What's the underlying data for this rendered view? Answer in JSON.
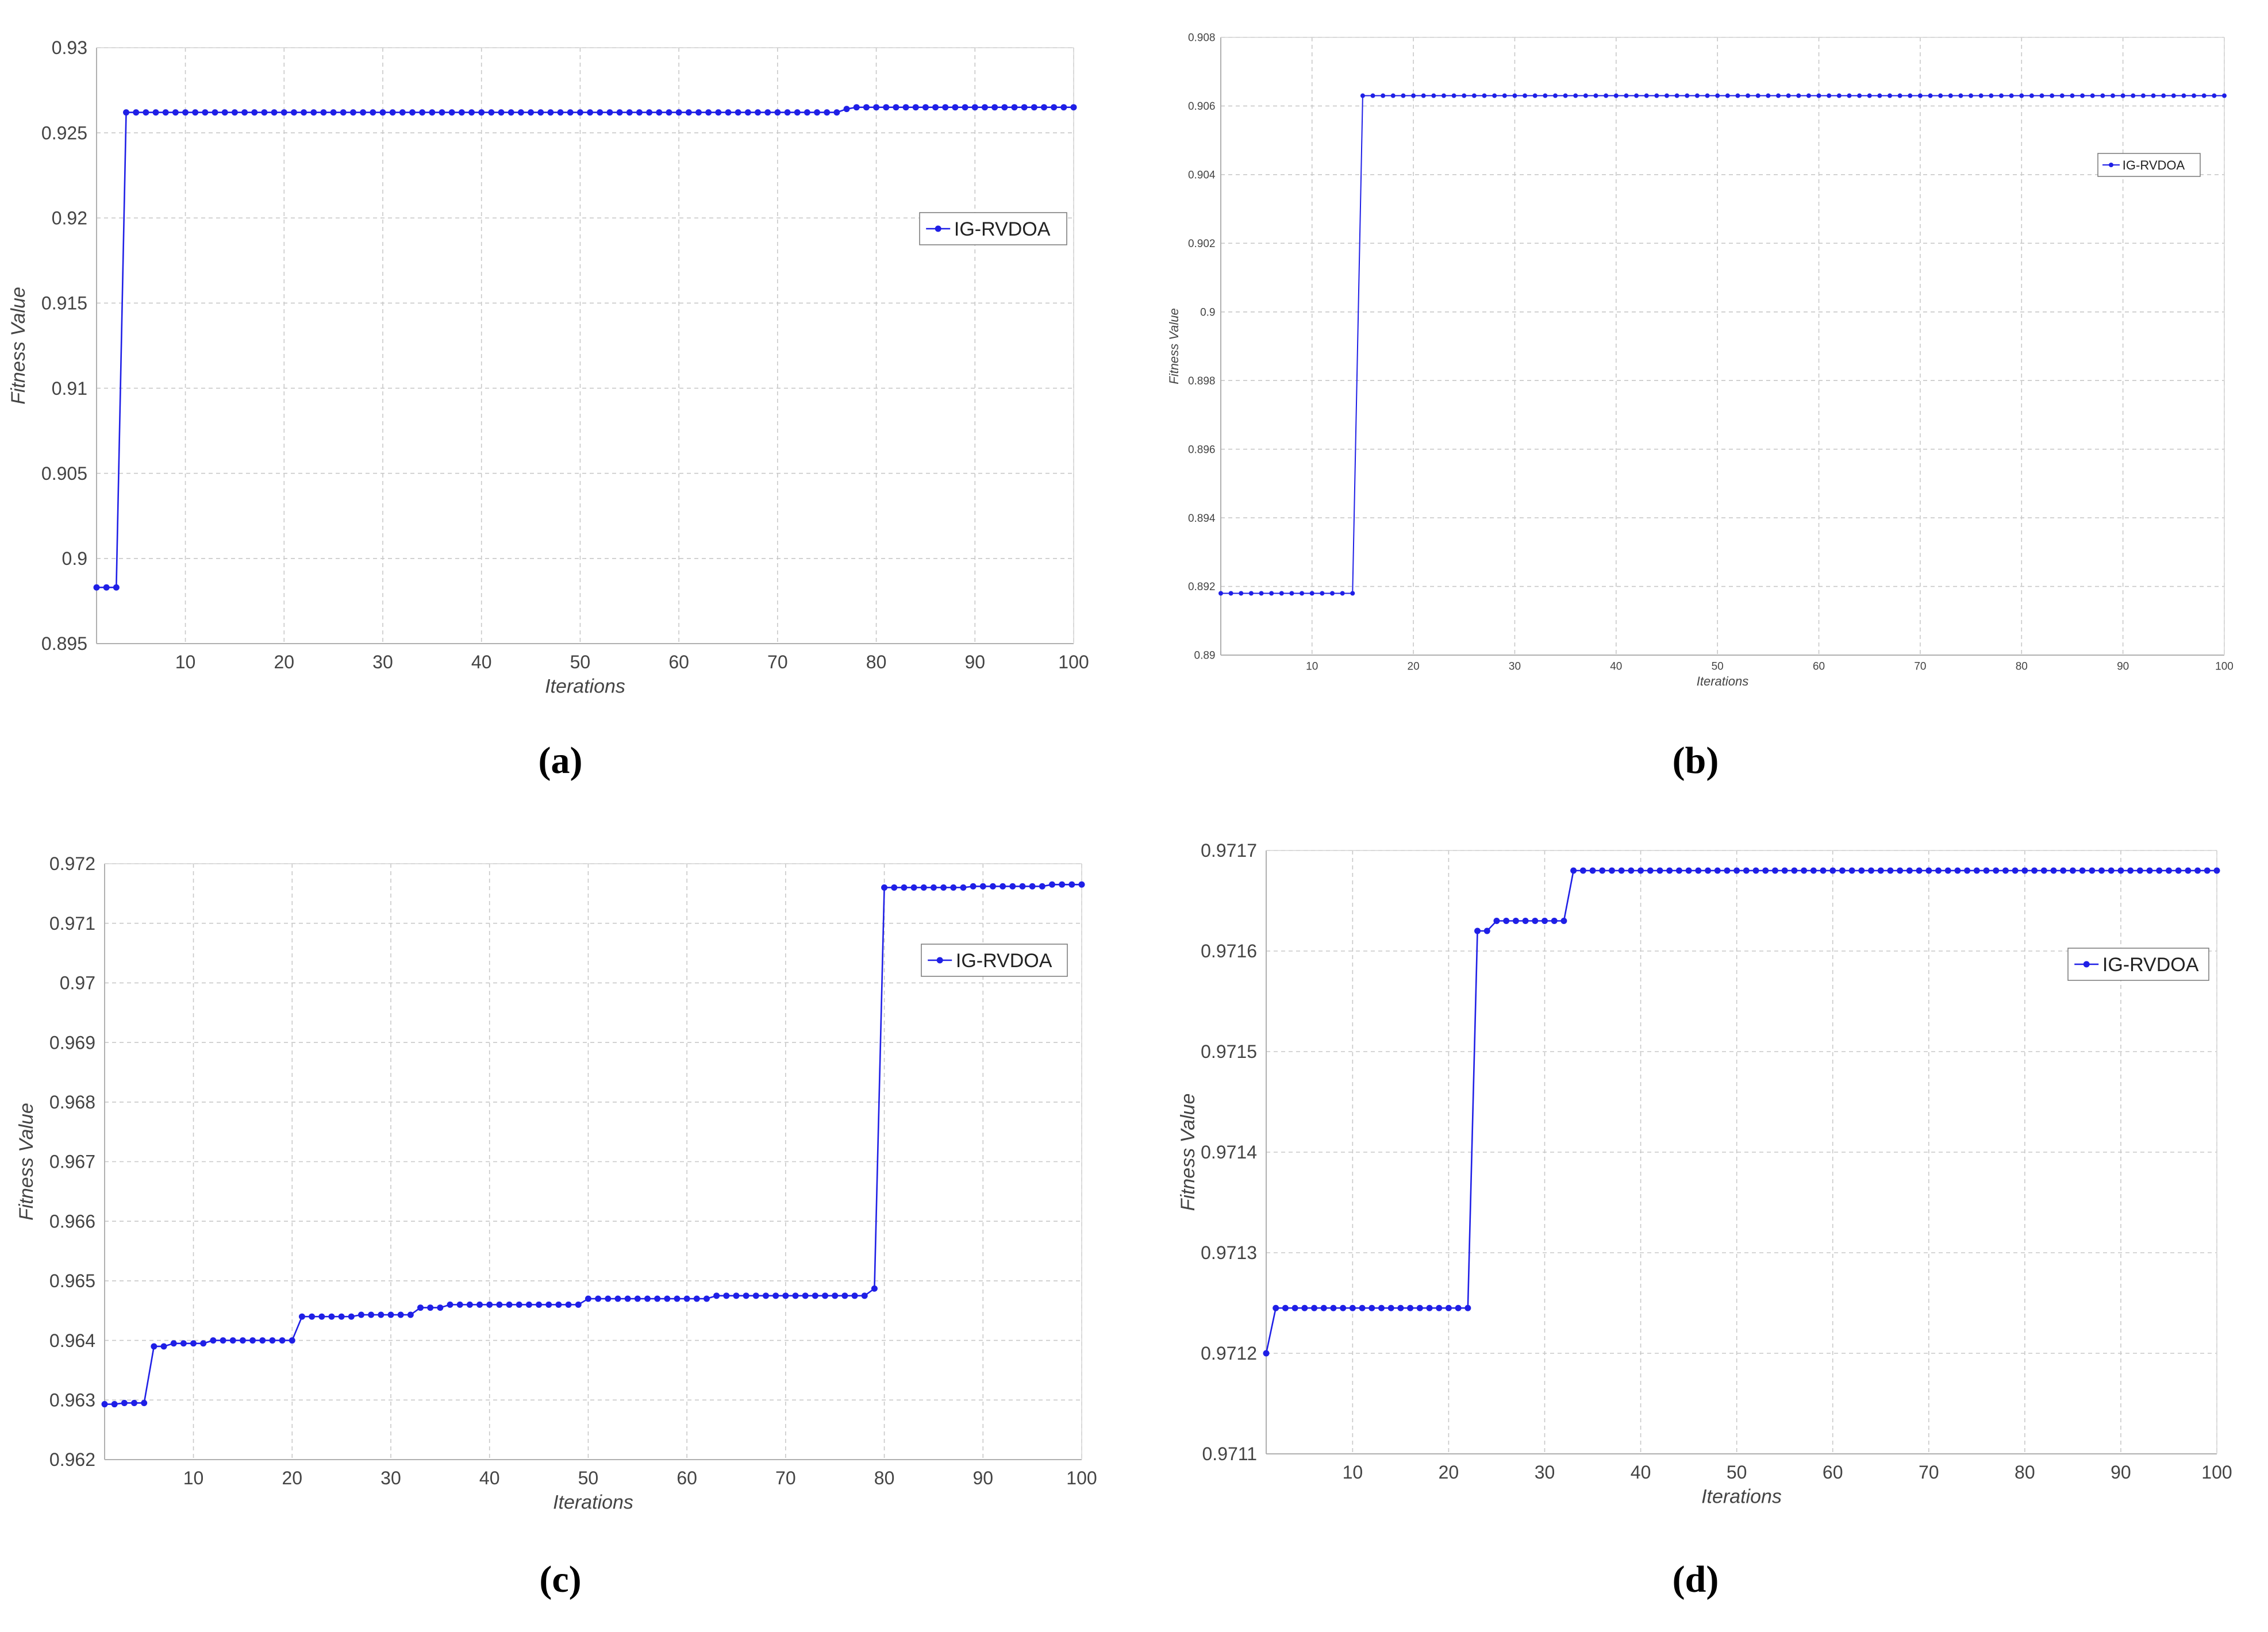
{
  "series_color": "#1f1fe6",
  "chart_data": [
    {
      "type": "line",
      "panel_label": "(a)",
      "xlabel": "Iterations",
      "ylabel": "Fitness Value",
      "xlim": [
        1,
        100
      ],
      "ylim": [
        0.895,
        0.93
      ],
      "xticks": [
        10,
        20,
        30,
        40,
        50,
        60,
        70,
        80,
        90,
        100
      ],
      "xtick_labels": [
        "10",
        "20",
        "30",
        "40",
        "50",
        "60",
        "70",
        "80",
        "90",
        "100"
      ],
      "yticks": [
        0.895,
        0.9,
        0.905,
        0.91,
        0.915,
        0.92,
        0.925,
        0.93
      ],
      "ytick_labels": [
        "0.895",
        "0.9",
        "0.905",
        "0.91",
        "0.915",
        "0.92",
        "0.925",
        "0.93"
      ],
      "grid": true,
      "legend_position": "right",
      "steps": [
        [
          1,
          0.8983
        ],
        [
          4,
          0.9262
        ],
        [
          77,
          0.9264
        ],
        [
          78,
          0.9265
        ]
      ],
      "series": [
        {
          "name": "IG-RVDOA",
          "x_range": [
            1,
            100
          ]
        }
      ]
    },
    {
      "type": "line",
      "panel_label": "(b)",
      "xlabel": "Iterations",
      "ylabel": "Fitness Value",
      "xlim": [
        1,
        100
      ],
      "ylim": [
        0.89,
        0.908
      ],
      "xticks": [
        10,
        20,
        30,
        40,
        50,
        60,
        70,
        80,
        90,
        100
      ],
      "xtick_labels": [
        "10",
        "20",
        "30",
        "40",
        "50",
        "60",
        "70",
        "80",
        "90",
        "100"
      ],
      "yticks": [
        0.89,
        0.892,
        0.894,
        0.896,
        0.898,
        0.9,
        0.902,
        0.904,
        0.906,
        0.908
      ],
      "ytick_labels": [
        "0.89",
        "0.892",
        "0.894",
        "0.896",
        "0.898",
        "0.9",
        "0.902",
        "0.904",
        "0.906",
        "0.908"
      ],
      "grid": true,
      "legend_position": "top-right",
      "steps": [
        [
          1,
          0.8918
        ],
        [
          15,
          0.9063
        ]
      ],
      "series": [
        {
          "name": "IG-RVDOA",
          "x_range": [
            1,
            100
          ]
        }
      ]
    },
    {
      "type": "line",
      "panel_label": "(c)",
      "xlabel": "Iterations",
      "ylabel": "Fitness Value",
      "xlim": [
        1,
        100
      ],
      "ylim": [
        0.962,
        0.972
      ],
      "xticks": [
        10,
        20,
        30,
        40,
        50,
        60,
        70,
        80,
        90,
        100
      ],
      "xtick_labels": [
        "10",
        "20",
        "30",
        "40",
        "50",
        "60",
        "70",
        "80",
        "90",
        "100"
      ],
      "yticks": [
        0.962,
        0.963,
        0.964,
        0.965,
        0.966,
        0.967,
        0.968,
        0.969,
        0.97,
        0.971,
        0.972
      ],
      "ytick_labels": [
        "0.962",
        "0.963",
        "0.964",
        "0.965",
        "0.966",
        "0.967",
        "0.968",
        "0.969",
        "0.97",
        "0.971",
        "0.972"
      ],
      "grid": true,
      "legend_position": "right",
      "steps": [
        [
          1,
          0.96293
        ],
        [
          3,
          0.96295
        ],
        [
          6,
          0.9639
        ],
        [
          8,
          0.96395
        ],
        [
          12,
          0.964
        ],
        [
          21,
          0.9644
        ],
        [
          27,
          0.96443
        ],
        [
          33,
          0.96455
        ],
        [
          36,
          0.9646
        ],
        [
          50,
          0.9647
        ],
        [
          63,
          0.96475
        ],
        [
          79,
          0.96487
        ],
        [
          80,
          0.9716
        ],
        [
          89,
          0.97162
        ],
        [
          97,
          0.97165
        ]
      ],
      "series": [
        {
          "name": "IG-RVDOA",
          "x_range": [
            1,
            100
          ]
        }
      ]
    },
    {
      "type": "line",
      "panel_label": "(d)",
      "xlabel": "Iterations",
      "ylabel": "Fitness Value",
      "xlim": [
        1,
        100
      ],
      "ylim": [
        0.9711,
        0.9717
      ],
      "xticks": [
        10,
        20,
        30,
        40,
        50,
        60,
        70,
        80,
        90,
        100
      ],
      "xtick_labels": [
        "10",
        "20",
        "30",
        "40",
        "50",
        "60",
        "70",
        "80",
        "90",
        "100"
      ],
      "yticks": [
        0.9711,
        0.9712,
        0.9713,
        0.9714,
        0.9715,
        0.9716,
        0.9717
      ],
      "ytick_labels": [
        "0.9711",
        "0.9712",
        "0.9713",
        "0.9714",
        "0.9715",
        "0.9716",
        "0.9717"
      ],
      "grid": true,
      "legend_position": "right",
      "steps": [
        [
          1,
          0.9712
        ],
        [
          2,
          0.971245
        ],
        [
          23,
          0.97162
        ],
        [
          25,
          0.97163
        ],
        [
          33,
          0.97168
        ]
      ],
      "series": [
        {
          "name": "IG-RVDOA",
          "x_range": [
            1,
            100
          ]
        }
      ]
    }
  ]
}
